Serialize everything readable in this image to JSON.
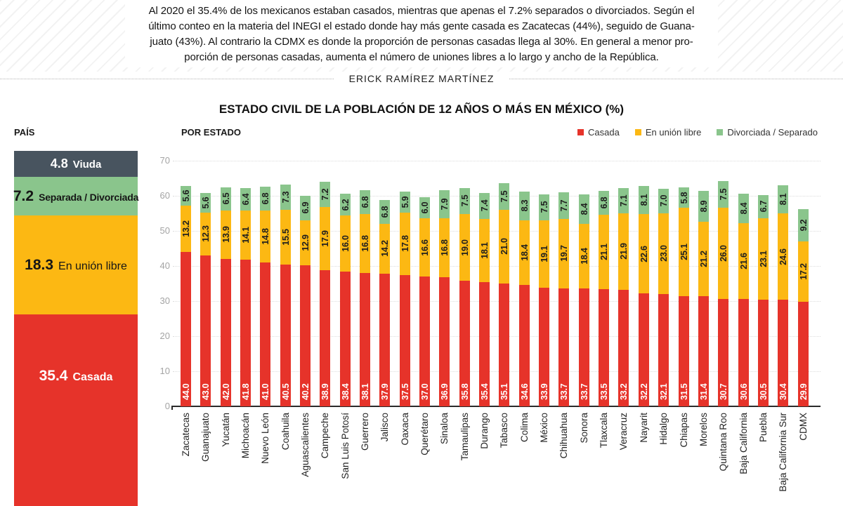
{
  "header": {
    "lines": [
      "Al 2020 el 35.4% de los mexicanos estaban casados, mientras que apenas el 7.2% separados o divorciados. Según el",
      "último conteo en la materia del INEGI el estado donde hay más gente casada es Zacatecas (44%), seguido de Guana-",
      "juato (43%). Al contrario la CDMX es donde la proporción de personas casadas llega al 30%. En general a menor pro-",
      "porción de personas casadas, aumenta el número de uniones libres a lo largo y ancho de la República."
    ],
    "byline": "ERICK RAMÍREZ MARTÍNEZ"
  },
  "title": "ESTADO CIVIL DE LA POBLACIÓN DE 12 AÑOS O MÁS EN MÉXICO (%)",
  "country_panel": {
    "label": "PAÍS",
    "segments": [
      {
        "value": "4.8",
        "label": "Viuda",
        "color": "#48545f",
        "text_color": "#ffffff"
      },
      {
        "value": "7.2",
        "label": "Separada / Divorciada",
        "color": "#8ac58c",
        "text_color": "#161616"
      },
      {
        "value": "18.3",
        "label": "En unión libre",
        "color": "#fcb813",
        "text_color": "#161616"
      },
      {
        "value": "35.4",
        "label": "Casada",
        "color": "#e6332a",
        "text_color": "#ffffff"
      }
    ]
  },
  "chart": {
    "label": "POR ESTADO",
    "y_ticks": [
      70,
      60,
      50,
      40,
      30,
      20,
      10,
      0
    ],
    "legend": [
      {
        "label": "Casada",
        "color": "#e6332a"
      },
      {
        "label": "En unión libre",
        "color": "#fcb813"
      },
      {
        "label": "Divorciada / Separado",
        "color": "#8ac58c"
      }
    ]
  },
  "chart_data": {
    "type": "bar",
    "stacked": true,
    "title": "ESTADO CIVIL DE LA POBLACIÓN DE 12 AÑOS O MÁS EN MÉXICO (%)",
    "xlabel": "",
    "ylabel": "",
    "ylim": [
      0,
      70
    ],
    "grid": true,
    "legend_position": "top-right",
    "categories": [
      "Zacatecas",
      "Guanajuato",
      "Yucatán",
      "Michoacán",
      "Nuevo León",
      "Coahuila",
      "Aguascalientes",
      "Campeche",
      "San Luis Potosí",
      "Guerrero",
      "Jalisco",
      "Oaxaca",
      "Querétaro",
      "Sinaloa",
      "Tamaulipas",
      "Durango",
      "Tabasco",
      "Colima",
      "México",
      "Chihuahua",
      "Sonora",
      "Tlaxcala",
      "Veracruz",
      "Nayarit",
      "Hidalgo",
      "Chiapas",
      "Morelos",
      "Quintana Roo",
      "Baja California",
      "Puebla",
      "Baja California Sur",
      "CDMX"
    ],
    "series": [
      {
        "name": "Casada",
        "color": "#e6332a",
        "values": [
          44.0,
          43.0,
          42.0,
          41.8,
          41.0,
          40.5,
          40.2,
          38.9,
          38.4,
          38.1,
          37.9,
          37.5,
          37.0,
          36.9,
          35.8,
          35.4,
          35.1,
          34.6,
          33.9,
          33.7,
          33.7,
          33.5,
          33.2,
          32.2,
          32.1,
          31.5,
          31.4,
          30.7,
          30.6,
          30.5,
          30.4,
          29.9
        ]
      },
      {
        "name": "En unión libre",
        "color": "#fcb813",
        "values": [
          13.2,
          12.3,
          13.9,
          14.1,
          14.8,
          15.5,
          12.9,
          17.9,
          16.0,
          16.8,
          14.2,
          17.8,
          16.6,
          16.8,
          19.0,
          18.1,
          21.0,
          18.4,
          19.1,
          19.7,
          18.4,
          21.1,
          21.9,
          22.6,
          23.0,
          25.1,
          21.2,
          26.0,
          21.6,
          23.1,
          24.6,
          17.2
        ]
      },
      {
        "name": "Divorciada / Separado",
        "color": "#8ac58c",
        "values": [
          5.6,
          5.6,
          6.5,
          6.4,
          6.8,
          7.3,
          6.9,
          7.2,
          6.2,
          6.8,
          6.8,
          5.9,
          6.0,
          7.9,
          7.5,
          7.4,
          7.5,
          8.3,
          7.5,
          7.7,
          8.4,
          6.8,
          7.1,
          8.1,
          7.0,
          5.8,
          8.9,
          7.5,
          8.4,
          6.7,
          8.1,
          9.2
        ]
      }
    ]
  }
}
